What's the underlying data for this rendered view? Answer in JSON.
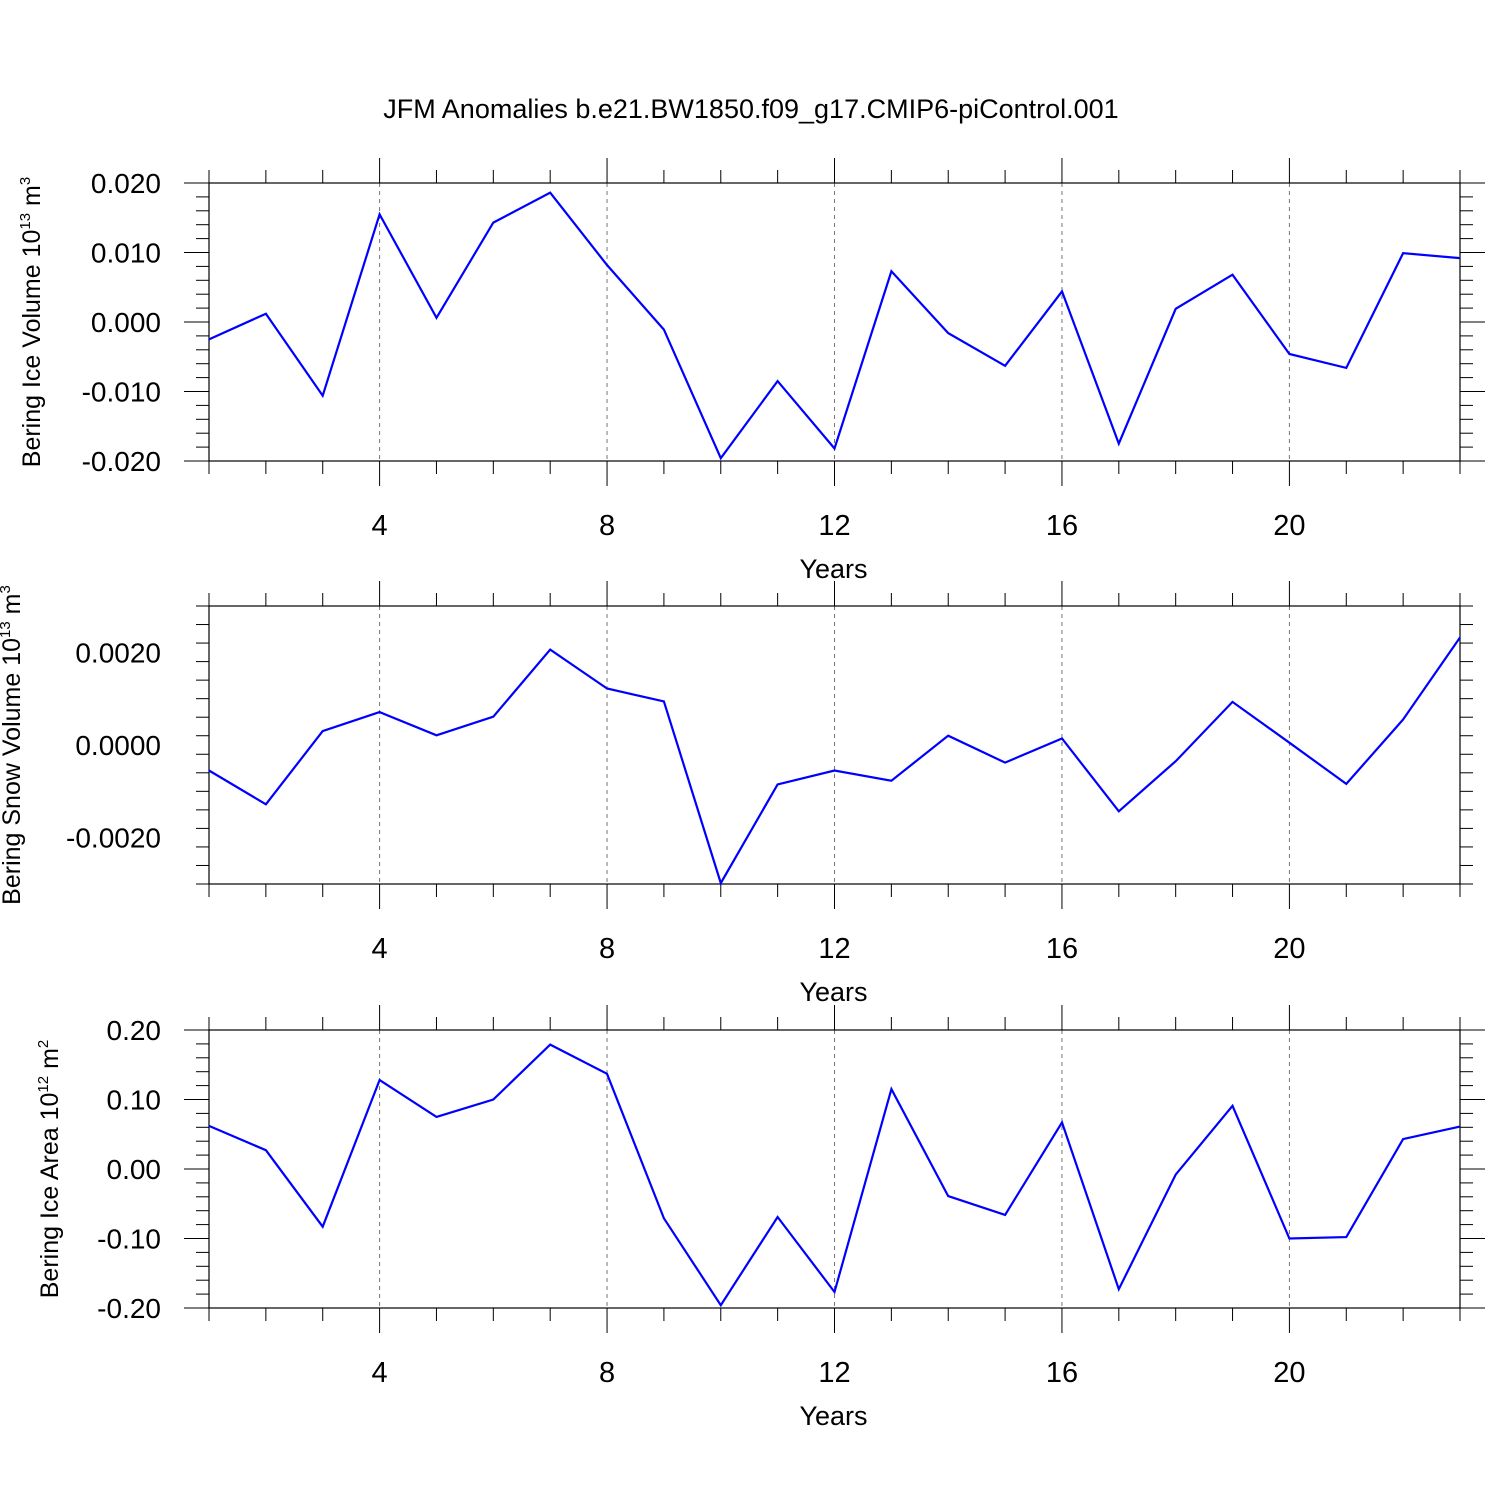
{
  "title": "JFM Anomalies b.e21.BW1850.f09_g17.CMIP6-piControl.001",
  "line_color": "#0000ff",
  "chart_data": [
    {
      "type": "line",
      "name": "ice-volume",
      "ylabel": {
        "main": "Bering Ice Volume 10",
        "exp": "13",
        "unit": " m",
        "unit_exp": "3"
      },
      "xlabel": "Years",
      "xlim": [
        1,
        23
      ],
      "ylim": [
        -0.02,
        0.02
      ],
      "xticks": [
        4,
        8,
        12,
        16,
        20
      ],
      "yticks": [
        -0.02,
        -0.01,
        0.0,
        0.01,
        0.02
      ],
      "ytick_labels": [
        "-0.020",
        "-0.010",
        "0.000",
        "0.010",
        "0.020"
      ],
      "x": [
        1,
        2,
        3,
        4,
        5,
        6,
        7,
        8,
        9,
        10,
        11,
        12,
        13,
        14,
        15,
        16,
        17,
        18,
        19,
        20,
        21,
        22,
        23
      ],
      "values": [
        -0.0025,
        0.0012,
        -0.0106,
        0.0155,
        0.0006,
        0.0143,
        0.0186,
        0.0082,
        -0.0011,
        -0.0196,
        -0.0085,
        -0.0182,
        0.0073,
        -0.0016,
        -0.0063,
        0.0044,
        -0.0175,
        0.0019,
        0.0068,
        -0.0046,
        -0.0066,
        0.0099,
        0.0092
      ]
    },
    {
      "type": "line",
      "name": "snow-volume",
      "ylabel": {
        "main": "Bering Snow Volume 10",
        "exp": "13",
        "unit": " m",
        "unit_exp": "3"
      },
      "xlabel": "Years",
      "xlim": [
        1,
        23
      ],
      "ylim": [
        -0.003,
        0.003
      ],
      "xticks": [
        4,
        8,
        12,
        16,
        20
      ],
      "yticks": [
        -0.002,
        0.0,
        0.002
      ],
      "ytick_labels": [
        "-0.0020",
        "0.0000",
        "0.0020"
      ],
      "x": [
        1,
        2,
        3,
        4,
        5,
        6,
        7,
        8,
        9,
        10,
        11,
        12,
        13,
        14,
        15,
        16,
        17,
        18,
        19,
        20,
        21,
        22,
        23
      ],
      "values": [
        -0.00055,
        -0.00128,
        0.0003,
        0.00071,
        0.00021,
        0.00061,
        0.00206,
        0.00122,
        0.00094,
        -0.00298,
        -0.00085,
        -0.00055,
        -0.00077,
        0.0002,
        -0.00038,
        0.00014,
        -0.00143,
        -0.00035,
        0.00093,
        5e-05,
        -0.00084,
        0.00055,
        0.00232
      ]
    },
    {
      "type": "line",
      "name": "ice-area",
      "ylabel": {
        "main": "Bering Ice Area 10",
        "exp": "12",
        "unit": " m",
        "unit_exp": "2"
      },
      "xlabel": "Years",
      "xlim": [
        1,
        23
      ],
      "ylim": [
        -0.2,
        0.2
      ],
      "xticks": [
        4,
        8,
        12,
        16,
        20
      ],
      "yticks": [
        -0.2,
        -0.1,
        0.0,
        0.1,
        0.2
      ],
      "ytick_labels": [
        "-0.20",
        "-0.10",
        "0.00",
        "0.10",
        "0.20"
      ],
      "x": [
        1,
        2,
        3,
        4,
        5,
        6,
        7,
        8,
        9,
        10,
        11,
        12,
        13,
        14,
        15,
        16,
        17,
        18,
        19,
        20,
        21,
        22,
        23
      ],
      "values": [
        0.062,
        0.027,
        -0.083,
        0.128,
        0.075,
        0.1,
        0.179,
        0.137,
        -0.071,
        -0.196,
        -0.069,
        -0.177,
        0.115,
        -0.039,
        -0.066,
        0.067,
        -0.173,
        -0.008,
        0.091,
        -0.1,
        -0.098,
        0.043,
        0.061
      ]
    }
  ]
}
